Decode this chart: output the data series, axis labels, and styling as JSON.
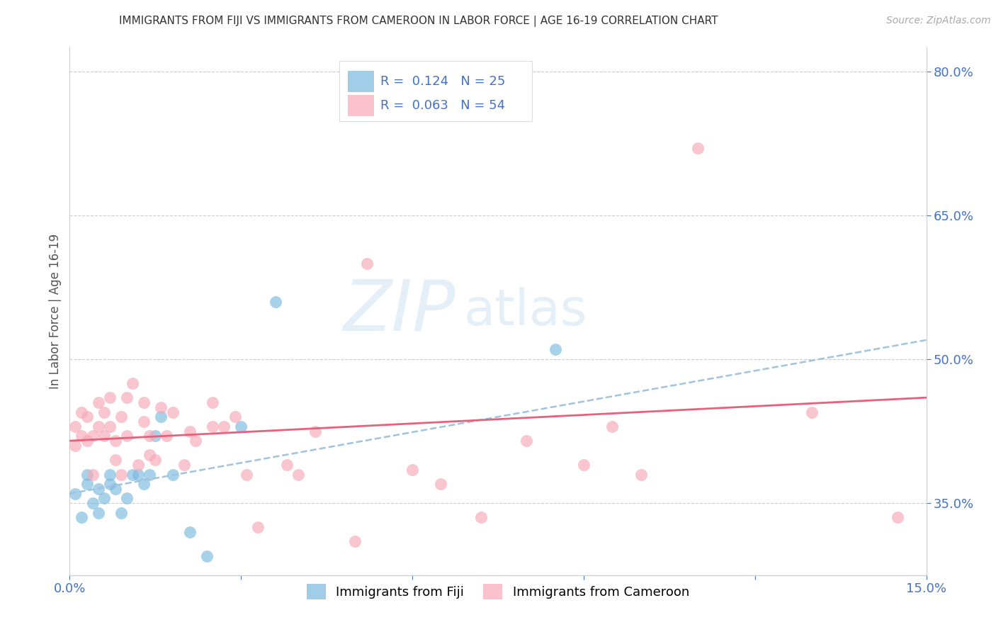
{
  "title": "IMMIGRANTS FROM FIJI VS IMMIGRANTS FROM CAMEROON IN LABOR FORCE | AGE 16-19 CORRELATION CHART",
  "source": "Source: ZipAtlas.com",
  "ylabel": "In Labor Force | Age 16-19",
  "xlim": [
    0.0,
    0.15
  ],
  "ylim": [
    0.275,
    0.825
  ],
  "xticks": [
    0.0,
    0.03,
    0.06,
    0.09,
    0.12,
    0.15
  ],
  "xticklabels": [
    "0.0%",
    "",
    "",
    "",
    "",
    "15.0%"
  ],
  "yticks_right": [
    0.35,
    0.5,
    0.65,
    0.8
  ],
  "ytick_labels_right": [
    "35.0%",
    "50.0%",
    "65.0%",
    "80.0%"
  ],
  "fiji_color": "#7ab9e0",
  "cameroon_color": "#f7a8b8",
  "fiji_R": 0.124,
  "fiji_N": 25,
  "cameroon_R": 0.063,
  "cameroon_N": 54,
  "watermark": "ZIPatlas",
  "fiji_scatter_x": [
    0.001,
    0.002,
    0.003,
    0.003,
    0.004,
    0.005,
    0.005,
    0.006,
    0.007,
    0.007,
    0.008,
    0.009,
    0.01,
    0.011,
    0.012,
    0.013,
    0.014,
    0.015,
    0.016,
    0.018,
    0.021,
    0.024,
    0.03,
    0.036,
    0.085
  ],
  "fiji_scatter_y": [
    0.36,
    0.335,
    0.37,
    0.38,
    0.35,
    0.34,
    0.365,
    0.355,
    0.37,
    0.38,
    0.365,
    0.34,
    0.355,
    0.38,
    0.38,
    0.37,
    0.38,
    0.42,
    0.44,
    0.38,
    0.32,
    0.295,
    0.43,
    0.56,
    0.51
  ],
  "cameroon_scatter_x": [
    0.001,
    0.001,
    0.002,
    0.002,
    0.003,
    0.003,
    0.004,
    0.004,
    0.005,
    0.005,
    0.006,
    0.006,
    0.007,
    0.007,
    0.008,
    0.008,
    0.009,
    0.009,
    0.01,
    0.01,
    0.011,
    0.012,
    0.013,
    0.013,
    0.014,
    0.014,
    0.015,
    0.016,
    0.017,
    0.018,
    0.02,
    0.021,
    0.022,
    0.025,
    0.025,
    0.027,
    0.029,
    0.031,
    0.033,
    0.038,
    0.04,
    0.043,
    0.05,
    0.052,
    0.06,
    0.065,
    0.072,
    0.08,
    0.09,
    0.095,
    0.1,
    0.11,
    0.13,
    0.145
  ],
  "cameroon_scatter_y": [
    0.41,
    0.43,
    0.42,
    0.445,
    0.415,
    0.44,
    0.42,
    0.38,
    0.43,
    0.455,
    0.42,
    0.445,
    0.43,
    0.46,
    0.415,
    0.395,
    0.38,
    0.44,
    0.42,
    0.46,
    0.475,
    0.39,
    0.455,
    0.435,
    0.4,
    0.42,
    0.395,
    0.45,
    0.42,
    0.445,
    0.39,
    0.425,
    0.415,
    0.455,
    0.43,
    0.43,
    0.44,
    0.38,
    0.325,
    0.39,
    0.38,
    0.425,
    0.31,
    0.6,
    0.385,
    0.37,
    0.335,
    0.415,
    0.39,
    0.43,
    0.38,
    0.72,
    0.445,
    0.335
  ],
  "fiji_trend_x": [
    0.0,
    0.15
  ],
  "fiji_trend_y": [
    0.36,
    0.52
  ],
  "cameroon_trend_x": [
    0.0,
    0.15
  ],
  "cameroon_trend_y": [
    0.415,
    0.46
  ],
  "background_color": "#ffffff",
  "grid_color": "#cccccc",
  "title_color": "#333333",
  "axis_color": "#4472c4",
  "legend_fiji_label": "Immigrants from Fiji",
  "legend_cameroon_label": "Immigrants from Cameroon"
}
